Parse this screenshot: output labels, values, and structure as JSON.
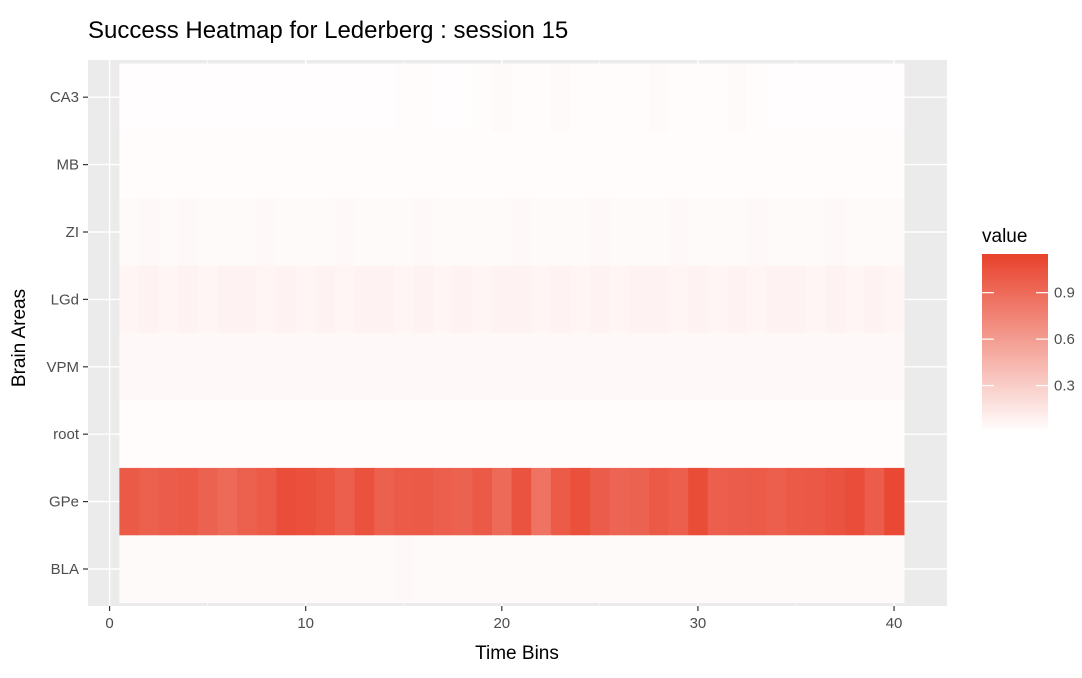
{
  "chart_data": {
    "type": "heatmap",
    "title": "Success Heatmap for Lederberg : session 15",
    "xlabel": "Time Bins",
    "ylabel": "Brain Areas",
    "x": [
      1,
      2,
      3,
      4,
      5,
      6,
      7,
      8,
      9,
      10,
      11,
      12,
      13,
      14,
      15,
      16,
      17,
      18,
      19,
      20,
      21,
      22,
      23,
      24,
      25,
      26,
      27,
      28,
      29,
      30,
      31,
      32,
      33,
      34,
      35,
      36,
      37,
      38,
      39,
      40
    ],
    "xlim": [
      0,
      40
    ],
    "x_ticks": [
      0,
      10,
      20,
      30,
      40
    ],
    "x_tick_labels": [
      "0",
      "10",
      "20",
      "30",
      "40"
    ],
    "y_categories": [
      "CA3",
      "MB",
      "ZI",
      "LGd",
      "VPM",
      "root",
      "GPe",
      "BLA"
    ],
    "grid": true,
    "rows": [
      {
        "area": "CA3",
        "values": [
          0.01,
          0.01,
          0.01,
          0.01,
          0.01,
          0.01,
          0.01,
          0.01,
          0.01,
          0.01,
          0.01,
          0.01,
          0.01,
          0.01,
          0.02,
          0.02,
          0.01,
          0.01,
          0.02,
          0.03,
          0.02,
          0.02,
          0.03,
          0.02,
          0.02,
          0.02,
          0.02,
          0.03,
          0.02,
          0.02,
          0.02,
          0.03,
          0.02,
          0.01,
          0.01,
          0.01,
          0.01,
          0.01,
          0.01,
          0.01
        ]
      },
      {
        "area": "MB",
        "values": [
          0.02,
          0.02,
          0.02,
          0.02,
          0.02,
          0.02,
          0.02,
          0.02,
          0.02,
          0.02,
          0.02,
          0.02,
          0.02,
          0.02,
          0.02,
          0.02,
          0.02,
          0.02,
          0.02,
          0.02,
          0.02,
          0.02,
          0.02,
          0.02,
          0.02,
          0.02,
          0.02,
          0.02,
          0.02,
          0.02,
          0.02,
          0.02,
          0.02,
          0.02,
          0.02,
          0.02,
          0.02,
          0.02,
          0.02,
          0.02
        ]
      },
      {
        "area": "ZI",
        "values": [
          0.03,
          0.04,
          0.03,
          0.04,
          0.03,
          0.03,
          0.03,
          0.04,
          0.03,
          0.03,
          0.03,
          0.04,
          0.03,
          0.03,
          0.03,
          0.04,
          0.03,
          0.03,
          0.03,
          0.03,
          0.04,
          0.03,
          0.03,
          0.03,
          0.04,
          0.03,
          0.03,
          0.03,
          0.04,
          0.03,
          0.03,
          0.03,
          0.04,
          0.03,
          0.03,
          0.03,
          0.04,
          0.03,
          0.03,
          0.03
        ]
      },
      {
        "area": "LGd",
        "values": [
          0.06,
          0.07,
          0.06,
          0.07,
          0.06,
          0.07,
          0.07,
          0.06,
          0.07,
          0.06,
          0.07,
          0.06,
          0.07,
          0.07,
          0.06,
          0.07,
          0.06,
          0.07,
          0.06,
          0.07,
          0.07,
          0.06,
          0.07,
          0.06,
          0.07,
          0.06,
          0.07,
          0.07,
          0.06,
          0.07,
          0.06,
          0.07,
          0.06,
          0.07,
          0.07,
          0.06,
          0.07,
          0.06,
          0.07,
          0.06
        ]
      },
      {
        "area": "VPM",
        "values": [
          0.04,
          0.04,
          0.04,
          0.04,
          0.04,
          0.04,
          0.04,
          0.04,
          0.04,
          0.04,
          0.04,
          0.04,
          0.04,
          0.04,
          0.04,
          0.04,
          0.04,
          0.04,
          0.04,
          0.04,
          0.04,
          0.04,
          0.04,
          0.04,
          0.04,
          0.04,
          0.04,
          0.04,
          0.04,
          0.04,
          0.04,
          0.04,
          0.04,
          0.04,
          0.04,
          0.04,
          0.04,
          0.04,
          0.04,
          0.04
        ]
      },
      {
        "area": "root",
        "values": [
          0.02,
          0.02,
          0.02,
          0.02,
          0.02,
          0.02,
          0.02,
          0.02,
          0.02,
          0.02,
          0.02,
          0.02,
          0.02,
          0.02,
          0.02,
          0.02,
          0.02,
          0.02,
          0.02,
          0.02,
          0.02,
          0.02,
          0.02,
          0.02,
          0.02,
          0.02,
          0.02,
          0.02,
          0.02,
          0.02,
          0.02,
          0.02,
          0.02,
          0.02,
          0.02,
          0.02,
          0.02,
          0.02,
          0.02,
          0.02
        ]
      },
      {
        "area": "GPe",
        "values": [
          1.0,
          0.96,
          0.98,
          1.0,
          0.95,
          0.9,
          0.96,
          0.99,
          1.07,
          1.06,
          1.02,
          0.97,
          1.05,
          0.96,
          0.99,
          1.0,
          0.97,
          0.95,
          1.0,
          0.9,
          1.04,
          0.85,
          0.99,
          1.06,
          0.98,
          0.93,
          0.95,
          1.0,
          0.97,
          1.08,
          0.97,
          0.98,
          0.99,
          0.97,
          1.0,
          1.01,
          1.04,
          1.07,
          0.98,
          1.1
        ]
      },
      {
        "area": "BLA",
        "values": [
          0.03,
          0.03,
          0.03,
          0.03,
          0.03,
          0.03,
          0.03,
          0.03,
          0.03,
          0.03,
          0.03,
          0.03,
          0.03,
          0.03,
          0.04,
          0.03,
          0.03,
          0.03,
          0.03,
          0.03,
          0.03,
          0.03,
          0.03,
          0.03,
          0.03,
          0.03,
          0.03,
          0.03,
          0.03,
          0.03,
          0.03,
          0.03,
          0.03,
          0.03,
          0.03,
          0.03,
          0.03,
          0.03,
          0.03,
          0.03
        ]
      }
    ],
    "legend": {
      "title": "value",
      "position": "right",
      "breaks": [
        0.3,
        0.6,
        0.9
      ],
      "break_labels": [
        "0.3",
        "0.6",
        "0.9"
      ],
      "range": [
        0.0,
        1.15
      ],
      "low_color": "#ffffff",
      "high_color": "#e8412b"
    },
    "colors": {
      "panel_background": "#ebebeb",
      "grid_line": "#ffffff",
      "tick_text": "#4d4d4d",
      "tick_mark": "#333333"
    }
  }
}
